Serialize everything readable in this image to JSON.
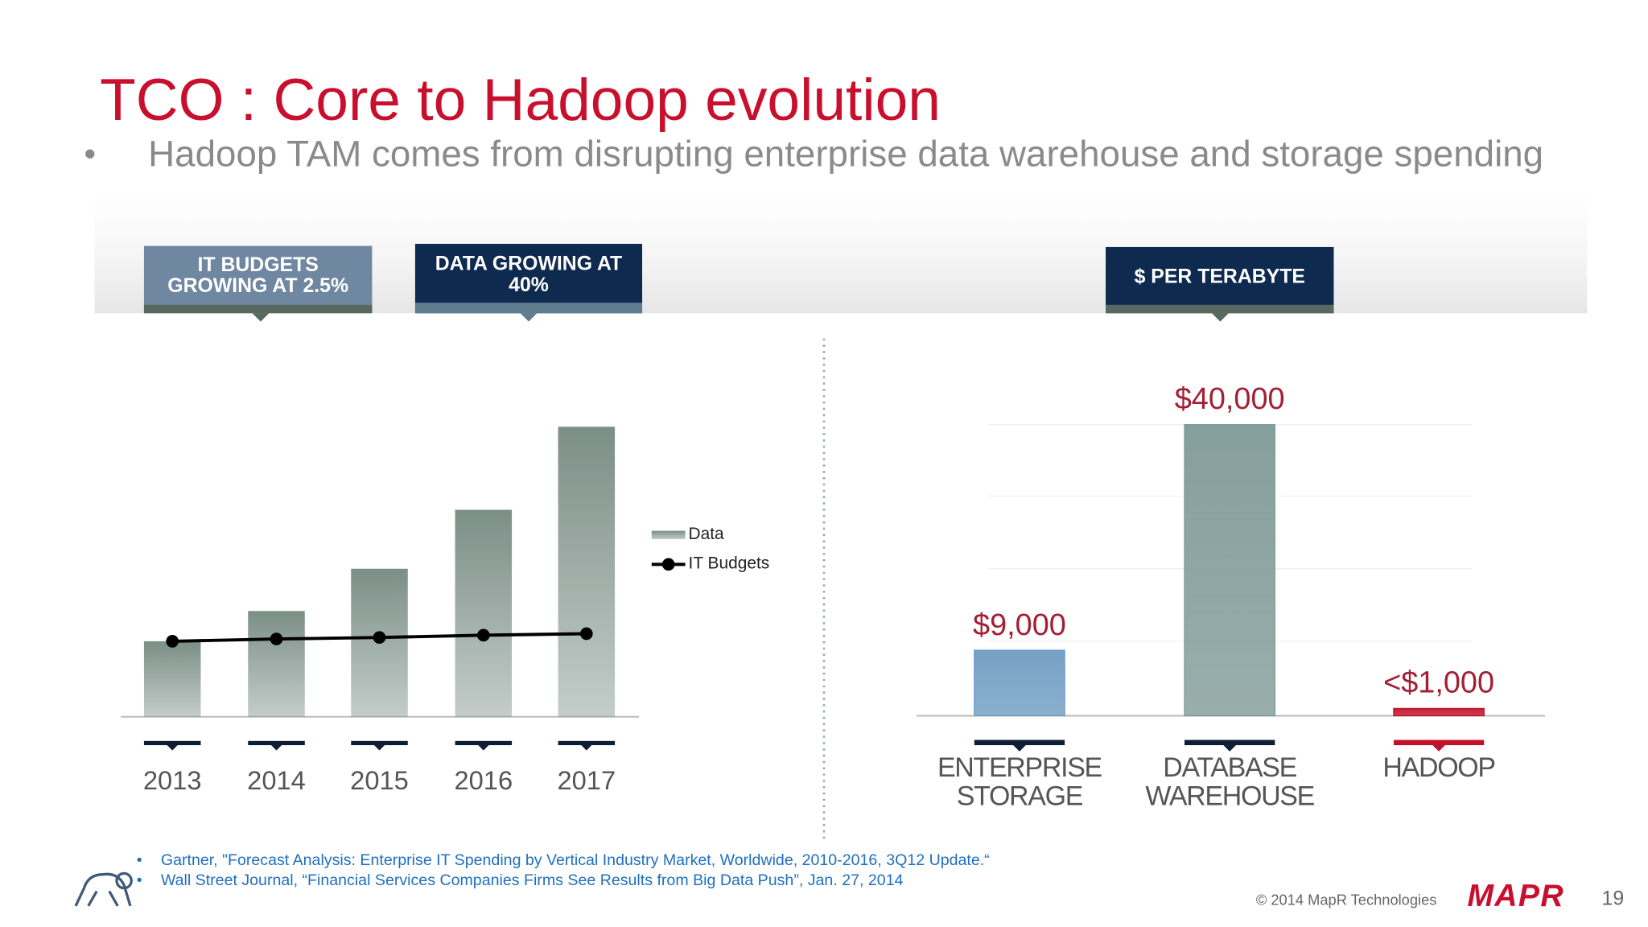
{
  "header": {
    "title": "TCO : Core to Hadoop evolution",
    "bullet": "Hadoop TAM comes from disrupting enterprise data warehouse and storage spending"
  },
  "callouts": [
    "IT BUDGETS GROWING AT 2.5%",
    "DATA GROWING AT 40%",
    "$ PER TERABYTE"
  ],
  "chart_data": [
    {
      "type": "combo",
      "categories": [
        "2013",
        "2014",
        "2015",
        "2016",
        "2017"
      ],
      "series": [
        {
          "name": "Data",
          "type": "bar",
          "color": "#7b8f87",
          "values": [
            100,
            140,
            196,
            274,
            384
          ]
        },
        {
          "name": "IT Budgets",
          "type": "line",
          "color": "#000000",
          "values": [
            100,
            103,
            105,
            108,
            110
          ]
        }
      ]
    },
    {
      "type": "bar",
      "categories": [
        "ENTERPRISE STORAGE",
        "DATABASE WAREHOUSE",
        "HADOOP"
      ],
      "values": [
        9000,
        40000,
        1000
      ],
      "value_labels": [
        "$9,000",
        "$40,000",
        "<$1,000"
      ],
      "colors": [
        "#6f9cc2",
        "#7f9a97",
        "#c0122a"
      ],
      "label_color": "#a31f34"
    }
  ],
  "footnotes": [
    "Gartner, \"Forecast Analysis: Enterprise IT Spending by Vertical Industry Market, Worldwide, 2010-2016, 3Q12 Update.“",
    "Wall Street Journal, “Financial Services Companies Firms See Results from Big Data Push”, Jan. 27, 2014"
  ],
  "footer": {
    "copyright": "© 2014 MapR Technologies",
    "logo": "MAPR",
    "page": "19"
  }
}
